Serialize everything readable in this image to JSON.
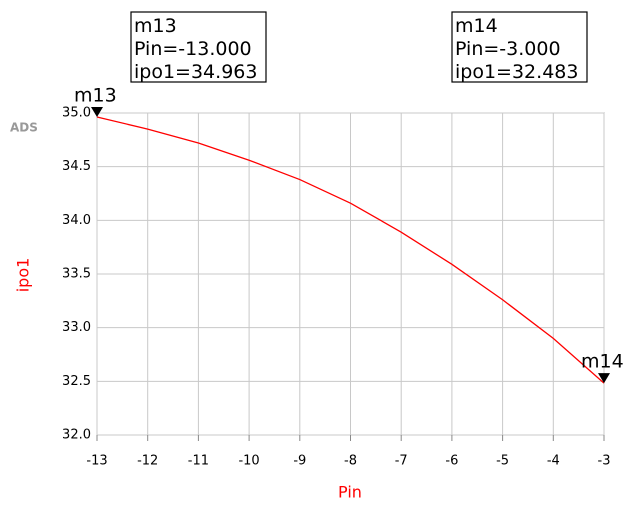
{
  "chart_data": {
    "type": "line",
    "watermark": "ADS",
    "xlabel": "Pin",
    "ylabel": "ipo1",
    "x": [
      -13,
      -12,
      -11,
      -10,
      -9,
      -8,
      -7,
      -6,
      -5,
      -4,
      -3
    ],
    "series": [
      {
        "name": "ipo1",
        "color": "#ff0000",
        "values": [
          34.963,
          34.85,
          34.72,
          34.56,
          34.38,
          34.16,
          33.89,
          33.59,
          33.26,
          32.9,
          32.483
        ]
      }
    ],
    "xlim": [
      -13,
      -3
    ],
    "ylim": [
      32,
      35
    ],
    "xticks": [
      -13,
      -12,
      -11,
      -10,
      -9,
      -8,
      -7,
      -6,
      -5,
      -4,
      -3
    ],
    "yticks": [
      {
        "value": 32,
        "label": "32.0"
      },
      {
        "value": 32.5,
        "label": "32.5"
      },
      {
        "value": 33,
        "label": "33.0"
      },
      {
        "value": 33.5,
        "label": "33.5"
      },
      {
        "value": 34,
        "label": "34.0"
      },
      {
        "value": 34.5,
        "label": "34.5"
      },
      {
        "value": 35,
        "label": "35.0"
      }
    ],
    "grid": true,
    "markers": [
      {
        "name": "m13",
        "x": -13,
        "y": 34.963,
        "lines": [
          "m13",
          "Pin=-13.000",
          "ipo1=34.963"
        ]
      },
      {
        "name": "m14",
        "x": -3,
        "y": 32.483,
        "lines": [
          "m14",
          "Pin=-3.000",
          "ipo1=32.483"
        ]
      }
    ]
  }
}
